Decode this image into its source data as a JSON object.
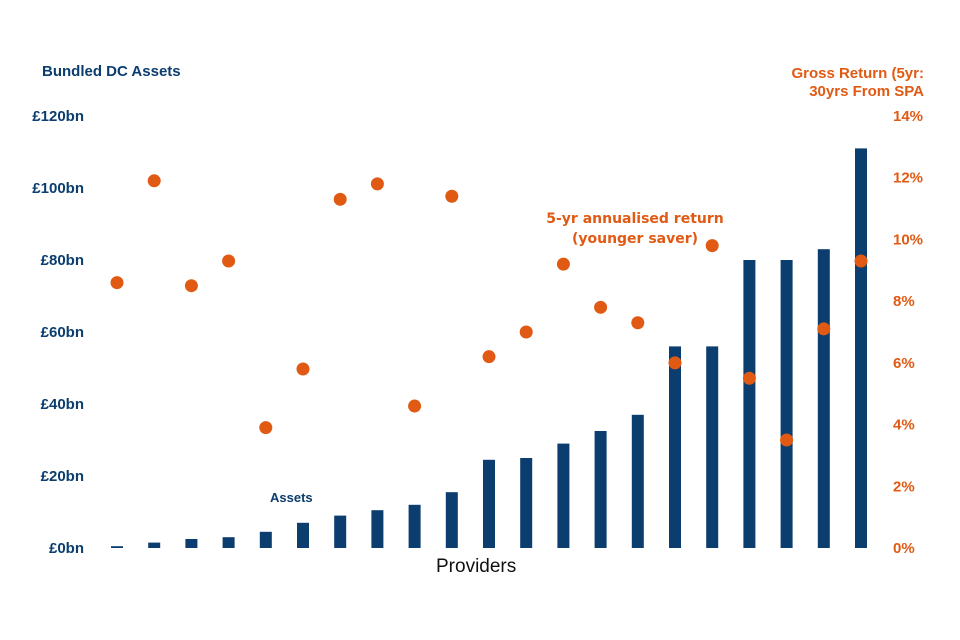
{
  "chart_data": {
    "type": "bar",
    "title": "",
    "xlabel": "Providers",
    "y_left_label": "Bundled DC Assets",
    "y_right_label_line1": "Gross Return (5yr:",
    "y_right_label_line2": "30yrs From SPA",
    "y_left_ticks": [
      "£0bn",
      "£20bn",
      "£40bn",
      "£60bn",
      "£80bn",
      "£100bn",
      "£120bn"
    ],
    "y_left_lim": [
      0,
      120
    ],
    "y_right_ticks": [
      "0%",
      "2%",
      "4%",
      "6%",
      "8%",
      "10%",
      "12%",
      "14%"
    ],
    "y_right_lim": [
      0,
      14
    ],
    "annotations": {
      "return": [
        "5-yr annualised return",
        "(younger saver)"
      ],
      "assets": "Assets"
    },
    "series": [
      {
        "name": "Assets",
        "kind": "bar",
        "axis": "left",
        "unit": "£bn",
        "color": "#0b3d6e",
        "values": [
          0.5,
          1.5,
          2.5,
          3,
          4.5,
          7,
          9,
          10.5,
          12,
          15.5,
          24.5,
          25,
          29,
          32.5,
          37,
          56,
          56,
          80,
          80,
          83,
          111
        ]
      },
      {
        "name": "5-yr annualised return (younger saver)",
        "kind": "scatter",
        "axis": "right",
        "unit": "%",
        "color": "#e05a14",
        "values": [
          8.6,
          11.9,
          8.5,
          9.3,
          3.9,
          5.8,
          11.3,
          11.8,
          4.6,
          11.4,
          6.2,
          7.0,
          9.2,
          7.8,
          7.3,
          6.0,
          9.8,
          5.5,
          3.5,
          7.1,
          9.3
        ]
      }
    ]
  }
}
